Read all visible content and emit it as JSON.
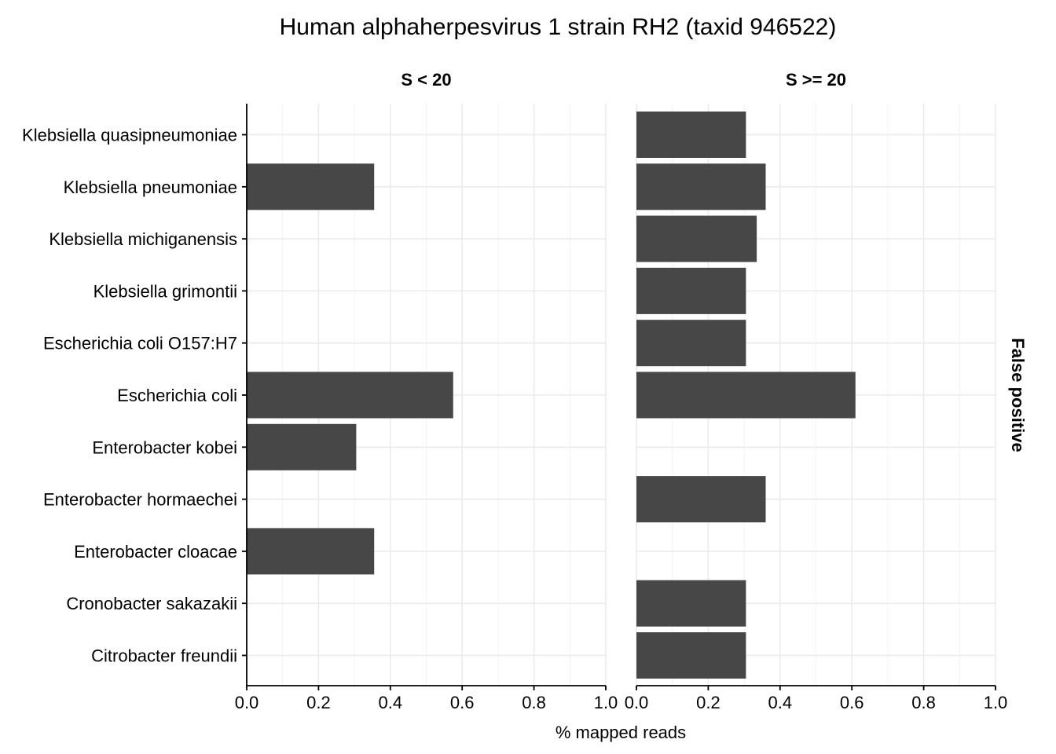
{
  "chart_data": {
    "type": "bar",
    "orientation": "horizontal",
    "title": "Human alphaherpesvirus 1 strain RH2 (taxid 946522)",
    "xlabel": "% mapped reads",
    "ylabel": "",
    "row_strip": "False positive",
    "xlim": [
      0,
      1
    ],
    "x_ticks": [
      "0.0",
      "0.2",
      "0.4",
      "0.6",
      "0.8",
      "1.0"
    ],
    "grid": true,
    "categories": [
      "Klebsiella quasipneumoniae",
      "Klebsiella pneumoniae",
      "Klebsiella michiganensis",
      "Klebsiella grimontii",
      "Escherichia coli O157:H7",
      "Escherichia coli",
      "Enterobacter kobei",
      "Enterobacter hormaechei",
      "Enterobacter cloacae",
      "Cronobacter sakazakii",
      "Citrobacter freundii"
    ],
    "panels": [
      {
        "name": "S < 20",
        "values": [
          null,
          0.355,
          null,
          null,
          null,
          0.575,
          0.305,
          null,
          0.355,
          null,
          null
        ]
      },
      {
        "name": "S >= 20",
        "values": [
          0.305,
          0.36,
          0.335,
          0.305,
          0.305,
          0.61,
          null,
          0.36,
          null,
          0.305,
          0.305
        ]
      }
    ]
  }
}
